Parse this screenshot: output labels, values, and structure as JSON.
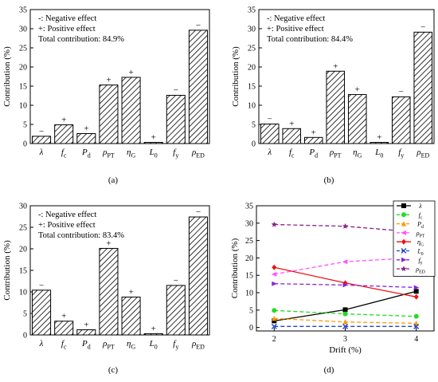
{
  "chart_data": [
    {
      "type": "bar",
      "panel_label": "(a)",
      "ylabel": "Contribution (%)",
      "ylim": [
        0,
        35
      ],
      "yticks": [
        0,
        5,
        10,
        15,
        20,
        25,
        30,
        35
      ],
      "notes": [
        "-: Negative effect",
        "+: Positive effect",
        "Total contribution: 84.9%"
      ],
      "categories": [
        "λ",
        "fc",
        "Pd",
        "ρPT",
        "ηG",
        "L0",
        "fy",
        "ρED"
      ],
      "values": [
        1.9,
        4.9,
        2.6,
        15.3,
        17.3,
        0.3,
        12.6,
        29.6
      ],
      "signs": [
        "−",
        "+",
        "+",
        "+",
        "+",
        "+",
        "−",
        "−"
      ]
    },
    {
      "type": "bar",
      "panel_label": "(b)",
      "ylabel": "Contribution (%)",
      "ylim": [
        0,
        35
      ],
      "yticks": [
        0,
        5,
        10,
        15,
        20,
        25,
        30,
        35
      ],
      "notes": [
        "-: Negative effect",
        "+: Positive effect",
        "Total contribution: 84.4%"
      ],
      "categories": [
        "λ",
        "fc",
        "Pd",
        "ρPT",
        "ηG",
        "L0",
        "fy",
        "ρED"
      ],
      "values": [
        5.1,
        3.9,
        1.6,
        18.9,
        12.8,
        0.3,
        12.2,
        29.1
      ],
      "signs": [
        "−",
        "+",
        "+",
        "+",
        "+",
        "+",
        "−",
        "−"
      ]
    },
    {
      "type": "bar",
      "panel_label": "(c)",
      "ylabel": "Contribution (%)",
      "ylim": [
        0,
        30
      ],
      "yticks": [
        0,
        5,
        10,
        15,
        20,
        25,
        30
      ],
      "notes": [
        "-: Negative effect",
        "+: Positive effect",
        "Total contribution: 83.4%"
      ],
      "categories": [
        "λ",
        "fc",
        "Pd",
        "ρPT",
        "ηG",
        "L0",
        "fy",
        "ρED"
      ],
      "values": [
        10.4,
        3.2,
        1.2,
        20.1,
        8.8,
        0.3,
        11.5,
        27.4
      ],
      "signs": [
        "−",
        "+",
        "+",
        "+",
        "+",
        "+",
        "−",
        "−"
      ]
    },
    {
      "type": "line",
      "panel_label": "(d)",
      "xlabel": "Drift (%)",
      "ylabel": "Contribution (%)",
      "x": [
        2,
        3,
        4
      ],
      "xlim": [
        1.75,
        4.25
      ],
      "ylim": [
        -1,
        35
      ],
      "yticks": [
        0,
        5,
        10,
        15,
        20,
        25,
        30,
        35
      ],
      "grid": false,
      "legend_position": "right",
      "series": [
        {
          "name": "λ",
          "color": "#000000",
          "marker": "square",
          "dash": "solid",
          "values": [
            1.9,
            5.1,
            10.4
          ]
        },
        {
          "name": "fc",
          "color": "#22dd22",
          "marker": "circle",
          "dash": "dash",
          "values": [
            4.9,
            3.9,
            3.2
          ]
        },
        {
          "name": "Pd",
          "color": "#ff9900",
          "marker": "triangle",
          "dash": "dash",
          "values": [
            2.6,
            1.6,
            1.2
          ]
        },
        {
          "name": "ρPT",
          "color": "#ff55ff",
          "marker": "triangle-left",
          "dash": "dash",
          "values": [
            15.3,
            18.9,
            20.1
          ]
        },
        {
          "name": "ηG",
          "color": "#ee1111",
          "marker": "diamond",
          "dash": "solid",
          "values": [
            17.3,
            12.8,
            8.8
          ]
        },
        {
          "name": "L0",
          "color": "#2244cc",
          "marker": "x",
          "dash": "dash",
          "values": [
            0.3,
            0.3,
            0.3
          ]
        },
        {
          "name": "fy",
          "color": "#8822dd",
          "marker": "triangle-right",
          "dash": "dash",
          "values": [
            12.6,
            12.2,
            11.5
          ]
        },
        {
          "name": "ρED",
          "color": "#882288",
          "marker": "star",
          "dash": "dash",
          "values": [
            29.6,
            29.1,
            27.4
          ]
        }
      ]
    }
  ]
}
